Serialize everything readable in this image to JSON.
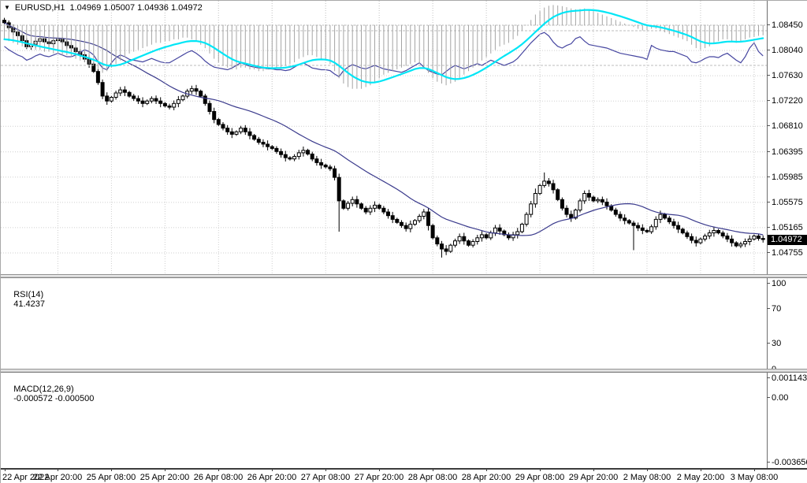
{
  "window": {
    "dropdown_icon": "▼",
    "symbol_period": "EURUSD,H1",
    "ohlc": "1.04969 1.05007 1.04936 1.04972"
  },
  "price_axis": {
    "labels": [
      "1.08450",
      "1.08040",
      "1.07630",
      "1.07220",
      "1.06810",
      "1.06395",
      "1.05985",
      "1.05575",
      "1.05165",
      "1.04755"
    ],
    "values": [
      1.0845,
      1.0804,
      1.0763,
      1.0722,
      1.0681,
      1.06395,
      1.05985,
      1.05575,
      1.05165,
      1.04755
    ],
    "current_label": "1.04972",
    "current_value": 1.04972
  },
  "rsi_panel": {
    "name": "RSI(14)",
    "value": "41.4237",
    "axis_labels": [
      "100",
      "70",
      "30",
      "0"
    ],
    "axis_values": [
      100,
      70,
      30,
      0
    ],
    "level_lines": [
      70,
      30
    ],
    "line_color": "#4646a0"
  },
  "macd_panel": {
    "name": "MACD(12,26,9)",
    "values": "-0.000572 -0.000500",
    "axis_labels": [
      "0.001143",
      "0.00",
      "-0.003656"
    ],
    "axis_values": [
      0.001143,
      0,
      -0.003656
    ],
    "hist_color": "#a4a4a4",
    "signal_color": "#00e6f6"
  },
  "time_axis": {
    "labels": [
      "22 Apr 2022",
      "22 Apr 20:00",
      "25 Apr 08:00",
      "25 Apr 20:00",
      "26 Apr 08:00",
      "26 Apr 20:00",
      "27 Apr 08:00",
      "27 Apr 20:00",
      "28 Apr 08:00",
      "28 Apr 20:00",
      "29 Apr 08:00",
      "29 Apr 20:00",
      "2 May 08:00",
      "2 May 20:00",
      "3 May 08:00"
    ]
  },
  "chart_data": [
    {
      "type": "candlestick",
      "title": "EURUSD H1 candlesticks with moving average",
      "x_unit": "1-hour bars, axis label every 12 bars",
      "ylim": [
        1.0441,
        1.0874
      ],
      "bull_color": "#ffffff",
      "bear_color": "#000000",
      "ma_period": 24,
      "ma_color": "#3a3a8c",
      "first_open": 1.0853,
      "default_wick": 0.00025,
      "wick_overrides": {
        "0": {
          "h": 1.0857
        },
        "75": {
          "l": 1.051
        },
        "95": {
          "l": 1.0512
        },
        "98": {
          "l": 1.0468
        },
        "119": {
          "h": 1.058
        },
        "121": {
          "h": 1.0606
        },
        "141": {
          "l": 1.048
        }
      },
      "closes": [
        1.0849,
        1.0841,
        1.0834,
        1.0828,
        1.082,
        1.081,
        1.0814,
        1.0819,
        1.0823,
        1.0818,
        1.0815,
        1.082,
        1.0822,
        1.0818,
        1.0812,
        1.0808,
        1.0802,
        1.0797,
        1.079,
        1.0782,
        1.077,
        1.0752,
        1.073,
        1.0722,
        1.0728,
        1.0735,
        1.074,
        1.0736,
        1.073,
        1.0726,
        1.0722,
        1.0718,
        1.0722,
        1.0726,
        1.0722,
        1.0718,
        1.0714,
        1.0712,
        1.0718,
        1.0724,
        1.073,
        1.0738,
        1.0742,
        1.0738,
        1.073,
        1.0718,
        1.0705,
        1.0692,
        1.0684,
        1.0678,
        1.0672,
        1.0668,
        1.0672,
        1.0678,
        1.0672,
        1.0666,
        1.066,
        1.0655,
        1.0652,
        1.0648,
        1.0645,
        1.064,
        1.0635,
        1.063,
        1.0628,
        1.0632,
        1.0638,
        1.0642,
        1.0636,
        1.0628,
        1.0622,
        1.0618,
        1.0615,
        1.0612,
        1.0598,
        1.056,
        1.0548,
        1.0556,
        1.0562,
        1.0555,
        1.0548,
        1.0542,
        1.0548,
        1.0553,
        1.0548,
        1.0542,
        1.0536,
        1.053,
        1.0525,
        1.052,
        1.0515,
        1.0522,
        1.0528,
        1.0535,
        1.0542,
        1.052,
        1.05,
        1.049,
        1.0482,
        1.0478,
        1.0488,
        1.0495,
        1.0502,
        1.0495,
        1.0488,
        1.0494,
        1.05,
        1.0505,
        1.05,
        1.0508,
        1.0516,
        1.0511,
        1.0505,
        1.05,
        1.0505,
        1.051,
        1.0522,
        1.0538,
        1.0555,
        1.0572,
        1.0585,
        1.0592,
        1.0588,
        1.0578,
        1.0562,
        1.0548,
        1.0538,
        1.0532,
        1.0545,
        1.056,
        1.0572,
        1.0566,
        1.056,
        1.0562,
        1.0558,
        1.0552,
        1.0545,
        1.0538,
        1.0532,
        1.0528,
        1.0524,
        1.052,
        1.0516,
        1.0512,
        1.051,
        1.0518,
        1.053,
        1.0538,
        1.0532,
        1.0526,
        1.052,
        1.0514,
        1.0508,
        1.0502,
        1.0496,
        1.0492,
        1.0498,
        1.0503,
        1.0508,
        1.0512,
        1.0508,
        1.0503,
        1.0498,
        1.0492,
        1.0487,
        1.049,
        1.0494,
        1.0498,
        1.0503,
        1.0499,
        1.04972
      ]
    },
    {
      "type": "line",
      "title": "RSI(14)",
      "ylim": [
        0,
        100
      ],
      "levels": [
        70,
        30
      ],
      "last_value": 41.4237,
      "values": [
        52,
        48,
        45,
        42,
        40,
        36,
        38,
        41,
        43,
        41,
        40,
        42,
        44,
        42,
        40,
        40,
        42,
        45,
        48,
        46,
        42,
        34,
        27,
        25,
        33,
        39,
        42,
        40,
        37,
        36,
        35,
        34,
        36,
        38,
        36,
        34,
        33,
        33,
        36,
        39,
        42,
        45,
        47,
        44,
        40,
        35,
        31,
        28,
        27,
        26,
        25,
        27,
        30,
        33,
        31,
        29,
        28,
        27,
        27,
        26,
        26,
        25,
        25,
        24,
        25,
        28,
        31,
        33,
        30,
        27,
        26,
        25,
        25,
        24,
        20,
        17,
        24,
        28,
        31,
        29,
        27,
        26,
        28,
        30,
        28,
        26,
        25,
        24,
        23,
        22,
        24,
        27,
        30,
        33,
        28,
        24,
        22,
        20,
        19,
        23,
        27,
        30,
        28,
        26,
        28,
        30,
        32,
        30,
        33,
        36,
        34,
        32,
        30,
        32,
        34,
        38,
        44,
        50,
        56,
        61,
        66,
        68,
        64,
        57,
        52,
        50,
        53,
        55,
        61,
        63,
        58,
        54,
        53,
        52,
        51,
        50,
        48,
        46,
        44,
        43,
        42,
        41,
        40,
        39,
        37,
        53,
        50,
        48,
        47,
        46,
        46,
        44,
        42,
        40,
        34,
        33,
        35,
        38,
        40,
        40,
        39,
        42,
        44,
        40,
        36,
        33,
        40,
        50,
        56,
        46,
        41
      ]
    },
    {
      "type": "bar",
      "title": "MACD(12,26,9) histogram with signal line (EMA 9)",
      "ylim": [
        -0.00402,
        0.00138
      ],
      "signal_ema_period": 9,
      "last_macd": -0.000572,
      "last_signal": -0.0005,
      "values": [
        -0.0008,
        -0.0009,
        -0.001,
        -0.0011,
        -0.0012,
        -0.0013,
        -0.0013,
        -0.0014,
        -0.0014,
        -0.0015,
        -0.0015,
        -0.0016,
        -0.0016,
        -0.0017,
        -0.0017,
        -0.0018,
        -0.0019,
        -0.002,
        -0.0021,
        -0.0022,
        -0.0023,
        -0.0025,
        -0.0027,
        -0.0026,
        -0.0024,
        -0.0022,
        -0.002,
        -0.0018,
        -0.0016,
        -0.0015,
        -0.0014,
        -0.0013,
        -0.0012,
        -0.0011,
        -0.001,
        -0.001,
        -0.0009,
        -0.0009,
        -0.0008,
        -0.0008,
        -0.0007,
        -0.0007,
        -0.0008,
        -0.0009,
        -0.0011,
        -0.0013,
        -0.0016,
        -0.0019,
        -0.0021,
        -0.0023,
        -0.0024,
        -0.0025,
        -0.0025,
        -0.0024,
        -0.0024,
        -0.0025,
        -0.0025,
        -0.0026,
        -0.0026,
        -0.0025,
        -0.0025,
        -0.0024,
        -0.0024,
        -0.0023,
        -0.0022,
        -0.0021,
        -0.0019,
        -0.0018,
        -0.0017,
        -0.0017,
        -0.0018,
        -0.0019,
        -0.002,
        -0.0022,
        -0.0026,
        -0.003,
        -0.0033,
        -0.0035,
        -0.0036,
        -0.0036,
        -0.0036,
        -0.0035,
        -0.0034,
        -0.0032,
        -0.003,
        -0.0028,
        -0.0027,
        -0.0026,
        -0.0025,
        -0.0024,
        -0.0023,
        -0.0022,
        -0.0021,
        -0.0022,
        -0.0024,
        -0.0027,
        -0.003,
        -0.0032,
        -0.0033,
        -0.0034,
        -0.0033,
        -0.0032,
        -0.003,
        -0.0028,
        -0.0026,
        -0.0024,
        -0.0022,
        -0.002,
        -0.0018,
        -0.0016,
        -0.0014,
        -0.0012,
        -0.0011,
        -0.001,
        -0.0008,
        -0.0006,
        -0.0003,
        0,
        0.0003,
        0.0006,
        0.0008,
        0.001,
        0.0011,
        0.00114,
        0.00112,
        0.00108,
        0.00102,
        0.00095,
        0.0009,
        0.00092,
        0.00095,
        0.0009,
        0.0008,
        0.0007,
        0.0006,
        0.0005,
        0.0004,
        0.0003,
        0.0002,
        0.0001,
        0,
        -0.0001,
        -0.0002,
        -0.0003,
        -0.0003,
        -0.0002,
        -0.0002,
        -0.0003,
        -0.0004,
        -0.0005,
        -0.0006,
        -0.0007,
        -0.0008,
        -0.0009,
        -0.0011,
        -0.0013,
        -0.0014,
        -0.0013,
        -0.0012,
        -0.001,
        -0.0009,
        -0.0008,
        -0.0008,
        -0.0009,
        -0.001,
        -0.0009,
        -0.0008,
        -0.0007,
        -0.00065,
        -0.0006,
        -0.000572
      ]
    }
  ]
}
